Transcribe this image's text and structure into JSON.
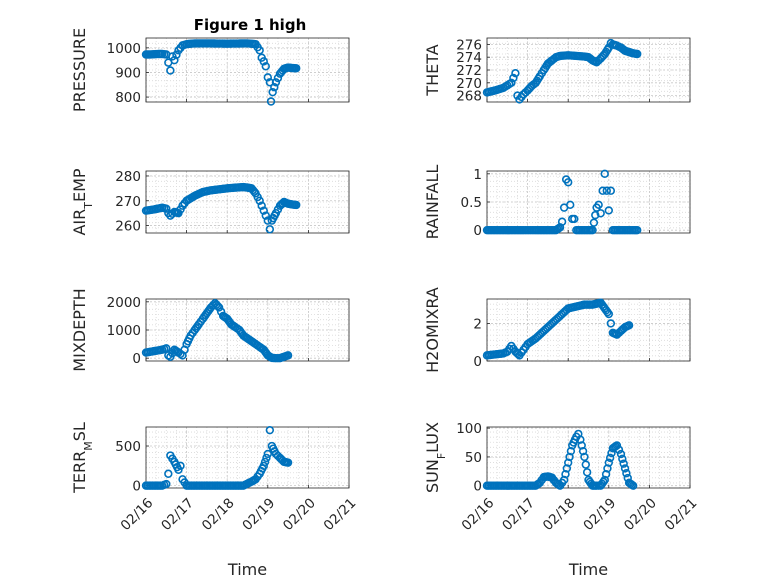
{
  "figure": {
    "title": "Figure 1 high"
  },
  "chart_data": [
    {
      "type": "scatter",
      "title": "Figure 1 high",
      "ylabel": "PRESSURE",
      "xlabel": "",
      "ylim": [
        780,
        1040
      ],
      "yticks": [
        800,
        900,
        1000
      ],
      "xticklabels": [],
      "grid": "on",
      "marker_color": "#0072BD",
      "points": [
        [
          0.0,
          973
        ],
        [
          0.1,
          973
        ],
        [
          0.2,
          974
        ],
        [
          0.3,
          975
        ],
        [
          0.4,
          975
        ],
        [
          0.5,
          973
        ],
        [
          0.55,
          940
        ],
        [
          0.6,
          908
        ],
        [
          0.65,
          965
        ],
        [
          0.7,
          950
        ],
        [
          0.75,
          972
        ],
        [
          0.8,
          990
        ],
        [
          0.9,
          1010
        ],
        [
          1.0,
          1015
        ],
        [
          1.2,
          1018
        ],
        [
          1.5,
          1018
        ],
        [
          2.0,
          1017
        ],
        [
          2.5,
          1018
        ],
        [
          2.7,
          1015
        ],
        [
          2.8,
          990
        ],
        [
          2.85,
          960
        ],
        [
          2.9,
          945
        ],
        [
          2.95,
          925
        ],
        [
          3.0,
          880
        ],
        [
          3.05,
          860
        ],
        [
          3.08,
          782
        ],
        [
          3.12,
          820
        ],
        [
          3.2,
          860
        ],
        [
          3.3,
          895
        ],
        [
          3.4,
          915
        ],
        [
          3.5,
          920
        ],
        [
          3.6,
          918
        ],
        [
          3.7,
          917
        ]
      ]
    },
    {
      "type": "scatter",
      "ylabel": "THETA",
      "xlabel": "",
      "ylim": [
        267,
        277
      ],
      "yticks": [
        268,
        270,
        272,
        274,
        276
      ],
      "xticklabels": [],
      "grid": "on",
      "marker_color": "#0072BD",
      "points": [
        [
          0.0,
          268.5
        ],
        [
          0.2,
          268.8
        ],
        [
          0.4,
          269.2
        ],
        [
          0.5,
          269.6
        ],
        [
          0.6,
          270.0
        ],
        [
          0.7,
          271.5
        ],
        [
          0.75,
          268.0
        ],
        [
          0.8,
          267.4
        ],
        [
          0.9,
          268.2
        ],
        [
          1.0,
          268.8
        ],
        [
          1.1,
          269.5
        ],
        [
          1.2,
          270.0
        ],
        [
          1.3,
          271.0
        ],
        [
          1.4,
          272.0
        ],
        [
          1.5,
          273.0
        ],
        [
          1.6,
          273.5
        ],
        [
          1.7,
          274.0
        ],
        [
          1.8,
          274.2
        ],
        [
          2.0,
          274.3
        ],
        [
          2.2,
          274.2
        ],
        [
          2.4,
          274.1
        ],
        [
          2.5,
          274.0
        ],
        [
          2.6,
          273.5
        ],
        [
          2.7,
          273.2
        ],
        [
          2.8,
          273.8
        ],
        [
          2.9,
          274.5
        ],
        [
          3.0,
          275.5
        ],
        [
          3.05,
          276.2
        ],
        [
          3.1,
          276.0
        ],
        [
          3.2,
          275.8
        ],
        [
          3.3,
          275.5
        ],
        [
          3.4,
          275.0
        ],
        [
          3.5,
          274.8
        ],
        [
          3.6,
          274.6
        ],
        [
          3.7,
          274.5
        ]
      ]
    },
    {
      "type": "scatter",
      "ylabel": "AIR_TEMP",
      "ylabel_main": "AIR",
      "ylabel_sub": "T",
      "ylabel_rest": "EMP",
      "xlabel": "",
      "ylim": [
        257,
        282
      ],
      "yticks": [
        260,
        270,
        280
      ],
      "xticklabels": [],
      "grid": "on",
      "marker_color": "#0072BD",
      "points": [
        [
          0.0,
          266.0
        ],
        [
          0.2,
          266.5
        ],
        [
          0.4,
          267.2
        ],
        [
          0.5,
          266.8
        ],
        [
          0.55,
          265.0
        ],
        [
          0.6,
          264.0
        ],
        [
          0.7,
          265.5
        ],
        [
          0.8,
          265.0
        ],
        [
          0.9,
          268.0
        ],
        [
          1.0,
          270.0
        ],
        [
          1.2,
          272.0
        ],
        [
          1.4,
          273.5
        ],
        [
          1.6,
          274.2
        ],
        [
          1.8,
          274.6
        ],
        [
          2.0,
          275.0
        ],
        [
          2.2,
          275.3
        ],
        [
          2.4,
          275.5
        ],
        [
          2.5,
          275.3
        ],
        [
          2.6,
          275.0
        ],
        [
          2.7,
          273.0
        ],
        [
          2.8,
          270.0
        ],
        [
          2.85,
          268.0
        ],
        [
          2.9,
          266.0
        ],
        [
          2.95,
          264.0
        ],
        [
          3.0,
          262.0
        ],
        [
          3.05,
          258.5
        ],
        [
          3.1,
          262.0
        ],
        [
          3.2,
          265.0
        ],
        [
          3.3,
          268.0
        ],
        [
          3.4,
          269.5
        ],
        [
          3.5,
          268.8
        ],
        [
          3.6,
          268.5
        ],
        [
          3.7,
          268.3
        ]
      ]
    },
    {
      "type": "scatter",
      "ylabel": "RAINFALL",
      "xlabel": "",
      "ylim": [
        -0.05,
        1.05
      ],
      "yticks": [
        0,
        0.5,
        1
      ],
      "xticklabels": [],
      "grid": "on",
      "marker_color": "#0072BD",
      "points": [
        [
          0.0,
          0
        ],
        [
          0.3,
          0
        ],
        [
          0.6,
          0
        ],
        [
          0.9,
          0
        ],
        [
          1.2,
          0
        ],
        [
          1.5,
          0
        ],
        [
          1.7,
          0
        ],
        [
          1.8,
          0.05
        ],
        [
          1.85,
          0.15
        ],
        [
          1.9,
          0.4
        ],
        [
          1.95,
          0.9
        ],
        [
          2.0,
          0.85
        ],
        [
          2.05,
          0.45
        ],
        [
          2.1,
          0.2
        ],
        [
          2.15,
          0.2
        ],
        [
          2.2,
          0
        ],
        [
          2.4,
          0
        ],
        [
          2.6,
          0
        ],
        [
          2.7,
          0.4
        ],
        [
          2.75,
          0.45
        ],
        [
          2.8,
          0.3
        ],
        [
          2.85,
          0.7
        ],
        [
          2.9,
          1.0
        ],
        [
          2.95,
          0.7
        ],
        [
          3.0,
          0.35
        ],
        [
          3.05,
          0.7
        ],
        [
          3.1,
          0
        ],
        [
          3.3,
          0
        ],
        [
          3.5,
          0
        ],
        [
          3.7,
          0
        ]
      ]
    },
    {
      "type": "scatter",
      "ylabel": "MIXDEPTH",
      "xlabel": "",
      "ylim": [
        -100,
        2100
      ],
      "yticks": [
        0,
        1000,
        2000
      ],
      "xticklabels": [],
      "grid": "on",
      "marker_color": "#0072BD",
      "points": [
        [
          0.0,
          200
        ],
        [
          0.2,
          250
        ],
        [
          0.4,
          300
        ],
        [
          0.5,
          350
        ],
        [
          0.55,
          100
        ],
        [
          0.6,
          50
        ],
        [
          0.7,
          300
        ],
        [
          0.8,
          200
        ],
        [
          0.9,
          100
        ],
        [
          1.0,
          500
        ],
        [
          1.1,
          800
        ],
        [
          1.2,
          1000
        ],
        [
          1.3,
          1200
        ],
        [
          1.4,
          1400
        ],
        [
          1.5,
          1600
        ],
        [
          1.6,
          1800
        ],
        [
          1.7,
          1950
        ],
        [
          1.8,
          1800
        ],
        [
          1.9,
          1500
        ],
        [
          2.0,
          1400
        ],
        [
          2.1,
          1200
        ],
        [
          2.2,
          1100
        ],
        [
          2.3,
          1000
        ],
        [
          2.4,
          800
        ],
        [
          2.5,
          700
        ],
        [
          2.6,
          600
        ],
        [
          2.7,
          500
        ],
        [
          2.8,
          400
        ],
        [
          2.9,
          300
        ],
        [
          3.0,
          100
        ],
        [
          3.1,
          10
        ],
        [
          3.2,
          0
        ],
        [
          3.3,
          0
        ],
        [
          3.4,
          50
        ],
        [
          3.5,
          100
        ]
      ]
    },
    {
      "type": "scatter",
      "ylabel": "H2OMIXRA",
      "xlabel": "",
      "ylim": [
        0,
        3.3
      ],
      "yticks": [
        0,
        2
      ],
      "xticklabels": [],
      "grid": "on",
      "marker_color": "#0072BD",
      "points": [
        [
          0.0,
          0.3
        ],
        [
          0.2,
          0.35
        ],
        [
          0.4,
          0.4
        ],
        [
          0.5,
          0.5
        ],
        [
          0.6,
          0.8
        ],
        [
          0.7,
          0.5
        ],
        [
          0.8,
          0.3
        ],
        [
          0.9,
          0.6
        ],
        [
          1.0,
          0.9
        ],
        [
          1.2,
          1.2
        ],
        [
          1.4,
          1.6
        ],
        [
          1.6,
          2.0
        ],
        [
          1.8,
          2.4
        ],
        [
          2.0,
          2.8
        ],
        [
          2.2,
          2.9
        ],
        [
          2.4,
          3.0
        ],
        [
          2.6,
          3.0
        ],
        [
          2.8,
          3.1
        ],
        [
          2.9,
          2.8
        ],
        [
          3.0,
          2.5
        ],
        [
          3.05,
          2.0
        ],
        [
          3.1,
          1.5
        ],
        [
          3.2,
          1.4
        ],
        [
          3.3,
          1.6
        ],
        [
          3.4,
          1.8
        ],
        [
          3.5,
          1.9
        ]
      ]
    },
    {
      "type": "scatter",
      "ylabel": "TERR_MSL",
      "ylabel_main": "TERR",
      "ylabel_sub": "M",
      "ylabel_rest": "SL",
      "xlabel": "Time",
      "ylim": [
        -30,
        740
      ],
      "yticks": [
        0,
        500
      ],
      "xticklabels": [
        "02/16",
        "02/17",
        "02/18",
        "02/19",
        "02/20",
        "02/21"
      ],
      "grid": "on",
      "marker_color": "#0072BD",
      "points": [
        [
          0.0,
          0
        ],
        [
          0.2,
          0
        ],
        [
          0.4,
          0
        ],
        [
          0.5,
          20
        ],
        [
          0.55,
          150
        ],
        [
          0.6,
          380
        ],
        [
          0.7,
          300
        ],
        [
          0.8,
          200
        ],
        [
          0.85,
          250
        ],
        [
          0.9,
          80
        ],
        [
          1.0,
          0
        ],
        [
          1.2,
          0
        ],
        [
          1.4,
          0
        ],
        [
          1.6,
          0
        ],
        [
          1.8,
          0
        ],
        [
          2.0,
          0
        ],
        [
          2.2,
          0
        ],
        [
          2.4,
          0
        ],
        [
          2.6,
          50
        ],
        [
          2.7,
          80
        ],
        [
          2.8,
          150
        ],
        [
          2.9,
          250
        ],
        [
          3.0,
          400
        ],
        [
          3.05,
          700
        ],
        [
          3.1,
          500
        ],
        [
          3.2,
          400
        ],
        [
          3.3,
          350
        ],
        [
          3.4,
          300
        ],
        [
          3.5,
          290
        ]
      ]
    },
    {
      "type": "scatter",
      "ylabel": "SUN_FLUX",
      "ylabel_main": "SUN",
      "ylabel_sub": "F",
      "ylabel_rest": "LUX",
      "xlabel": "Time",
      "ylim": [
        -4,
        102
      ],
      "yticks": [
        0,
        50,
        100
      ],
      "xticklabels": [
        "02/16",
        "02/17",
        "02/18",
        "02/19",
        "02/20",
        "02/21"
      ],
      "grid": "on",
      "marker_color": "#0072BD",
      "points": [
        [
          0.0,
          0
        ],
        [
          0.2,
          0
        ],
        [
          0.4,
          0
        ],
        [
          0.6,
          0
        ],
        [
          0.8,
          0
        ],
        [
          1.0,
          0
        ],
        [
          1.2,
          0
        ],
        [
          1.3,
          5
        ],
        [
          1.4,
          15
        ],
        [
          1.5,
          16
        ],
        [
          1.6,
          14
        ],
        [
          1.7,
          5
        ],
        [
          1.8,
          0
        ],
        [
          1.9,
          10
        ],
        [
          2.0,
          40
        ],
        [
          2.1,
          70
        ],
        [
          2.2,
          85
        ],
        [
          2.25,
          90
        ],
        [
          2.3,
          80
        ],
        [
          2.4,
          50
        ],
        [
          2.5,
          10
        ],
        [
          2.6,
          0
        ],
        [
          2.7,
          0
        ],
        [
          2.8,
          0
        ],
        [
          2.9,
          10
        ],
        [
          3.0,
          40
        ],
        [
          3.1,
          65
        ],
        [
          3.2,
          70
        ],
        [
          3.3,
          55
        ],
        [
          3.4,
          30
        ],
        [
          3.5,
          5
        ],
        [
          3.6,
          0
        ]
      ]
    }
  ]
}
